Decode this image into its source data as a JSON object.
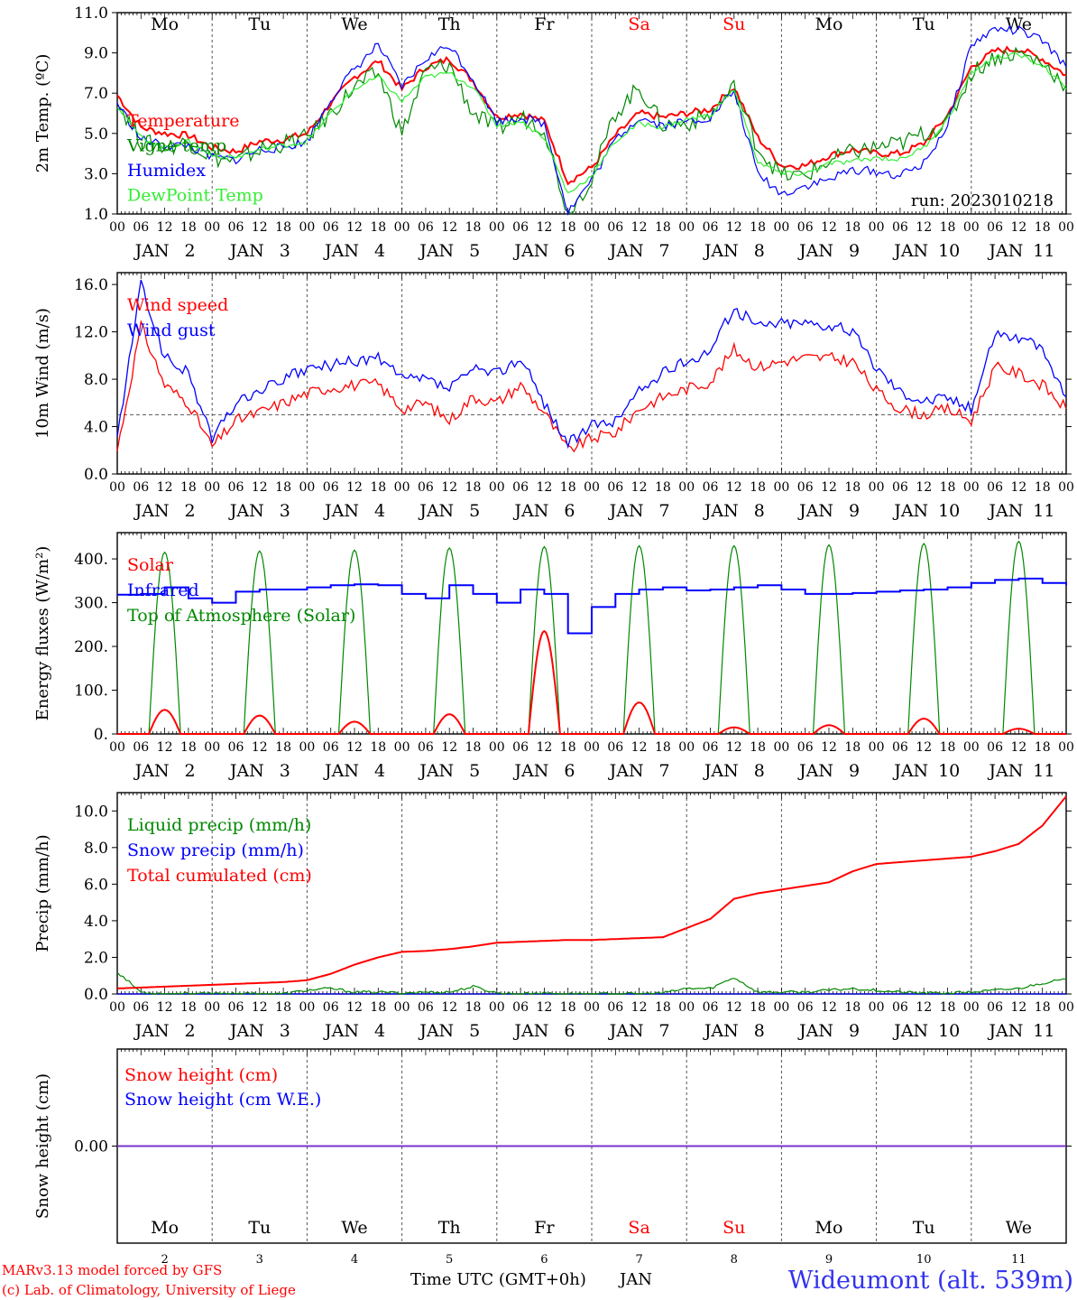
{
  "colors": {
    "red": "#ff0000",
    "blue": "#0000ff",
    "green": "#008800",
    "light_green": "#33ee33",
    "purple": "#7733cc",
    "frame": "#000000",
    "grid": "#555555"
  },
  "weekdays": [
    "Mo",
    "Tu",
    "We",
    "Th",
    "Fr",
    "Sa",
    "Su",
    "Mo",
    "Tu",
    "We"
  ],
  "weekday_colors": [
    "#000000",
    "#000000",
    "#000000",
    "#000000",
    "#000000",
    "#ff0000",
    "#ff0000",
    "#000000",
    "#000000",
    "#000000"
  ],
  "hour_labels": [
    "00",
    "06",
    "12",
    "18"
  ],
  "final_hour_label": "00",
  "date_month": "JAN",
  "date_days": [
    "2",
    "3",
    "4",
    "5",
    "6",
    "7",
    "8",
    "9",
    "10",
    "11"
  ],
  "bottom_day_numbers": [
    "2",
    "3",
    "4",
    "5",
    "6",
    "7",
    "8",
    "9",
    "10",
    "11"
  ],
  "run_label": "run: 2023010218",
  "xlabel": "Time UTC (GMT+0h)",
  "xlabel_month": "JAN",
  "credit_line1": "MARv3.13 model forced by GFS",
  "credit_line2": "(c) Lab. of Climatology, University of Liege",
  "station": "Wideumont (alt. 539m)",
  "chart_data": [
    {
      "type": "line",
      "title": "",
      "ylabel": "2m Temp. (ºC)",
      "ylim": [
        1.0,
        11.0
      ],
      "yticks": [
        "1.0",
        "3.0",
        "5.0",
        "7.0",
        "9.0",
        "11.0"
      ],
      "x": [
        0,
        6,
        12,
        18,
        24,
        30,
        36,
        42,
        48,
        54,
        60,
        66,
        72,
        78,
        84,
        90,
        96,
        102,
        108,
        114,
        120,
        126,
        132,
        138,
        144,
        150,
        156,
        162,
        168,
        174,
        180,
        186,
        192,
        198,
        204,
        210,
        216,
        222,
        228,
        234,
        240
      ],
      "x_unit": "hours from JAN 2 00 UTC",
      "series": [
        {
          "name": "Temperature",
          "color": "#ff0000",
          "values": [
            6.9,
            5.3,
            5.0,
            4.9,
            4.3,
            4.1,
            4.6,
            4.7,
            5.0,
            6.5,
            7.8,
            8.6,
            7.2,
            8.3,
            8.7,
            7.6,
            5.8,
            6.0,
            5.6,
            2.6,
            3.3,
            4.9,
            6.0,
            5.8,
            6.0,
            6.2,
            7.3,
            4.8,
            3.4,
            3.4,
            3.9,
            4.2,
            4.0,
            4.0,
            4.5,
            5.9,
            8.3,
            9.1,
            9.2,
            8.7,
            7.9
          ]
        },
        {
          "name": "Vigne temp",
          "color": "#008800",
          "values": [
            6.6,
            4.6,
            4.3,
            4.6,
            3.8,
            3.6,
            4.2,
            4.5,
            4.8,
            6.0,
            7.3,
            8.0,
            5.0,
            8.1,
            8.4,
            6.0,
            5.2,
            5.8,
            5.3,
            1.0,
            2.8,
            6.0,
            7.3,
            5.4,
            5.5,
            5.9,
            7.3,
            4.3,
            2.9,
            2.9,
            3.6,
            4.1,
            4.3,
            4.5,
            5.0,
            5.5,
            8.0,
            8.8,
            9.0,
            8.5,
            7.4
          ]
        },
        {
          "name": "Humidex",
          "color": "#0000ff",
          "values": [
            6.5,
            4.7,
            4.4,
            4.4,
            3.8,
            3.7,
            4.2,
            4.3,
            4.6,
            6.7,
            8.2,
            9.4,
            7.3,
            8.7,
            9.4,
            7.7,
            5.6,
            5.8,
            5.5,
            1.1,
            2.7,
            4.7,
            5.8,
            5.4,
            5.6,
            5.8,
            7.1,
            3.0,
            2.0,
            2.4,
            2.7,
            3.2,
            3.1,
            2.9,
            3.5,
            5.4,
            9.4,
            10.2,
            10.1,
            9.6,
            8.3
          ]
        },
        {
          "name": "DewPoint Temp",
          "color": "#33ee33",
          "values": [
            6.4,
            4.8,
            4.3,
            4.6,
            3.9,
            3.8,
            4.2,
            4.4,
            4.6,
            6.0,
            7.2,
            7.8,
            6.6,
            7.8,
            8.0,
            7.3,
            5.4,
            5.6,
            4.8,
            2.0,
            2.9,
            4.6,
            5.5,
            5.3,
            5.7,
            5.9,
            7.2,
            3.6,
            3.0,
            3.0,
            3.5,
            3.6,
            3.8,
            3.7,
            4.3,
            5.7,
            8.0,
            8.8,
            8.9,
            8.4,
            7.2
          ]
        }
      ]
    },
    {
      "type": "line",
      "title": "",
      "ylabel": "10m Wind (m/s)",
      "ylim": [
        0.0,
        17.0
      ],
      "yticks": [
        "0.0",
        "4.0",
        "8.0",
        "12.0",
        "16.0"
      ],
      "reference_line": 5.0,
      "x": [
        0,
        6,
        12,
        18,
        24,
        30,
        36,
        42,
        48,
        54,
        60,
        66,
        72,
        78,
        84,
        90,
        96,
        102,
        108,
        114,
        120,
        126,
        132,
        138,
        144,
        150,
        156,
        162,
        168,
        174,
        180,
        186,
        192,
        198,
        204,
        210,
        216,
        222,
        228,
        234,
        240
      ],
      "x_unit": "hours from JAN 2 00 UTC",
      "series": [
        {
          "name": "Wind speed",
          "color": "#ff0000",
          "values": [
            2.0,
            12.5,
            7.5,
            6.0,
            2.3,
            4.5,
            5.2,
            6.0,
            6.8,
            7.3,
            7.5,
            7.6,
            5.5,
            6.0,
            4.5,
            6.5,
            6.0,
            7.5,
            5.2,
            2.0,
            3.0,
            3.5,
            5.5,
            6.5,
            7.2,
            7.8,
            10.5,
            9.0,
            9.5,
            9.8,
            9.8,
            9.5,
            7.0,
            5.5,
            5.0,
            5.5,
            4.5,
            9.0,
            8.5,
            7.5,
            5.5
          ]
        },
        {
          "name": "Wind gust",
          "color": "#0000ff",
          "values": [
            3.0,
            16.0,
            9.8,
            8.5,
            3.0,
            6.0,
            7.0,
            8.0,
            8.8,
            9.2,
            9.5,
            9.8,
            8.0,
            8.0,
            7.2,
            8.8,
            8.5,
            9.8,
            6.0,
            2.6,
            4.0,
            4.5,
            7.0,
            8.5,
            9.5,
            10.5,
            14.0,
            12.5,
            12.8,
            12.8,
            12.6,
            12.0,
            9.0,
            7.0,
            6.2,
            6.5,
            5.5,
            12.0,
            11.5,
            10.5,
            6.5
          ]
        }
      ]
    },
    {
      "type": "line",
      "title": "",
      "ylabel": "Energy fluxes (W/m²)",
      "ylim": [
        0,
        460
      ],
      "yticks": [
        "0.",
        "100.",
        "200.",
        "300.",
        "400."
      ],
      "x_unit": "hours from JAN 2 00 UTC",
      "daylight_hours": [
        8,
        16
      ],
      "series": [
        {
          "name": "Solar",
          "color": "#ff0000",
          "daily_peaks": [
            55,
            42,
            28,
            45,
            235,
            72,
            15,
            20,
            35,
            12
          ]
        },
        {
          "name": "Infrared",
          "color": "#0000ff",
          "x": [
            0,
            6,
            12,
            18,
            24,
            30,
            36,
            42,
            48,
            54,
            60,
            66,
            72,
            78,
            84,
            90,
            96,
            102,
            108,
            114,
            120,
            126,
            132,
            138,
            144,
            150,
            156,
            162,
            168,
            174,
            180,
            186,
            192,
            198,
            204,
            210,
            216,
            222,
            228,
            234,
            240
          ],
          "values": [
            318,
            320,
            335,
            310,
            300,
            325,
            330,
            330,
            335,
            340,
            342,
            340,
            320,
            310,
            340,
            320,
            300,
            330,
            320,
            230,
            290,
            320,
            330,
            335,
            328,
            330,
            335,
            340,
            330,
            320,
            320,
            322,
            325,
            328,
            330,
            335,
            345,
            352,
            355,
            345,
            340
          ]
        },
        {
          "name": "Top of Atmosphere (Solar)",
          "color": "#008800",
          "daily_peaks": [
            415,
            418,
            420,
            425,
            428,
            430,
            430,
            432,
            435,
            440
          ]
        }
      ]
    },
    {
      "type": "line",
      "title": "",
      "ylabel": "Precip (mm/h)",
      "ylim": [
        0.0,
        11.0
      ],
      "yticks": [
        "0.0",
        "2.0",
        "4.0",
        "6.0",
        "8.0",
        "10.0"
      ],
      "x": [
        0,
        6,
        12,
        18,
        24,
        30,
        36,
        42,
        48,
        54,
        60,
        66,
        72,
        78,
        84,
        90,
        96,
        102,
        108,
        114,
        120,
        126,
        132,
        138,
        144,
        150,
        156,
        162,
        168,
        174,
        180,
        186,
        192,
        198,
        204,
        210,
        216,
        222,
        228,
        234,
        240
      ],
      "x_unit": "hours from JAN 2 00 UTC",
      "series": [
        {
          "name": "Liquid precip (mm/h)",
          "color": "#008800",
          "values": [
            1.2,
            0.1,
            0.0,
            0.05,
            0.0,
            0.05,
            0.0,
            0.0,
            0.2,
            0.3,
            0.1,
            0.1,
            0.05,
            0.1,
            0.1,
            0.4,
            0.05,
            0.0,
            0.05,
            0.0,
            0.0,
            0.0,
            0.0,
            0.05,
            0.3,
            0.3,
            0.9,
            0.1,
            0.1,
            0.1,
            0.2,
            0.3,
            0.2,
            0.1,
            0.05,
            0.05,
            0.1,
            0.2,
            0.3,
            0.6,
            0.8
          ]
        },
        {
          "name": "Snow precip (mm/h)",
          "color": "#0000ff",
          "values": [
            0,
            0,
            0,
            0,
            0,
            0,
            0,
            0,
            0,
            0,
            0,
            0,
            0,
            0,
            0,
            0,
            0,
            0,
            0,
            0,
            0,
            0,
            0,
            0,
            0,
            0,
            0,
            0,
            0,
            0,
            0,
            0,
            0,
            0,
            0,
            0,
            0,
            0,
            0,
            0,
            0
          ]
        },
        {
          "name": "Total cumulated (cm)",
          "color": "#ff0000",
          "values": [
            0.3,
            0.35,
            0.4,
            0.45,
            0.5,
            0.55,
            0.6,
            0.65,
            0.75,
            1.1,
            1.6,
            2.0,
            2.3,
            2.35,
            2.45,
            2.6,
            2.8,
            2.85,
            2.9,
            2.95,
            2.95,
            3.0,
            3.05,
            3.1,
            3.6,
            4.1,
            5.2,
            5.5,
            5.7,
            5.9,
            6.1,
            6.7,
            7.1,
            7.2,
            7.3,
            7.4,
            7.5,
            7.8,
            8.2,
            9.2,
            10.8
          ]
        }
      ]
    },
    {
      "type": "line",
      "title": "",
      "ylabel": "Snow height (cm)",
      "yticks": [
        "0.00"
      ],
      "series": [
        {
          "name": "Snow height (cm)",
          "color": "#ff0000",
          "values": [
            0,
            0
          ]
        },
        {
          "name": "Snow height (cm W.E.)",
          "color": "#0000ff",
          "values": [
            0,
            0
          ]
        }
      ]
    }
  ]
}
